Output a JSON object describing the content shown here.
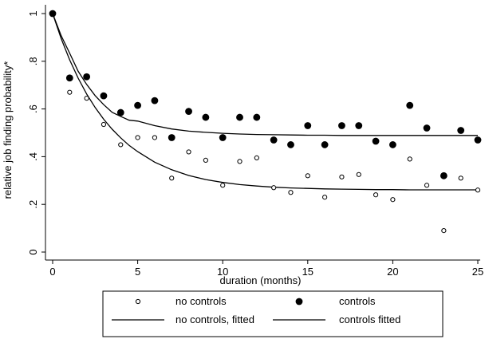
{
  "chart_data": {
    "type": "scatter",
    "xlabel": "duration (months)",
    "ylabel": "relative job finding probability*",
    "xlim": [
      0,
      25
    ],
    "ylim": [
      0,
      1
    ],
    "x_ticks": [
      "0",
      "5",
      "10",
      "15",
      "20",
      "25"
    ],
    "y_ticks": [
      "0",
      ".2",
      ".4",
      ".6",
      ".8",
      "1"
    ],
    "grid": false,
    "legend_position": "bottom",
    "series": [
      {
        "name": "no controls",
        "marker": "hollow-circle",
        "x": [
          0,
          1,
          2,
          3,
          4,
          5,
          6,
          7,
          8,
          9,
          10,
          11,
          12,
          13,
          14,
          15,
          16,
          17,
          18,
          19,
          20,
          21,
          22,
          23,
          24,
          25
        ],
        "y": [
          1.0,
          0.67,
          0.645,
          0.535,
          0.45,
          0.48,
          0.48,
          0.31,
          0.42,
          0.385,
          0.28,
          0.38,
          0.395,
          0.27,
          0.25,
          0.32,
          0.23,
          0.315,
          0.325,
          0.24,
          0.22,
          0.39,
          0.28,
          0.09,
          0.31,
          0.26
        ]
      },
      {
        "name": "controls",
        "marker": "filled-circle",
        "x": [
          0,
          1,
          2,
          3,
          4,
          5,
          6,
          7,
          8,
          9,
          10,
          11,
          12,
          13,
          14,
          15,
          16,
          17,
          18,
          19,
          20,
          21,
          22,
          23,
          24,
          25
        ],
        "y": [
          1.0,
          0.73,
          0.735,
          0.655,
          0.585,
          0.615,
          0.635,
          0.48,
          0.59,
          0.565,
          0.48,
          0.565,
          0.565,
          0.47,
          0.45,
          0.53,
          0.45,
          0.53,
          0.53,
          0.465,
          0.45,
          0.615,
          0.52,
          0.32,
          0.51,
          0.47
        ]
      },
      {
        "name": "no controls, fitted",
        "marker": "line",
        "x": [
          0,
          0.5,
          1,
          1.5,
          2,
          2.5,
          3,
          3.5,
          4,
          4.5,
          5,
          6,
          7,
          8,
          9,
          10,
          11,
          12,
          13,
          14,
          15,
          16,
          17,
          18,
          19,
          20,
          21,
          22,
          23,
          24,
          25
        ],
        "y": [
          1.0,
          0.895,
          0.806,
          0.729,
          0.663,
          0.606,
          0.557,
          0.515,
          0.479,
          0.447,
          0.421,
          0.377,
          0.345,
          0.321,
          0.304,
          0.292,
          0.283,
          0.277,
          0.272,
          0.269,
          0.267,
          0.265,
          0.264,
          0.263,
          0.262,
          0.262,
          0.261,
          0.261,
          0.261,
          0.261,
          0.261
        ]
      },
      {
        "name": "controls fitted",
        "marker": "line",
        "x": [
          0,
          0.5,
          1,
          1.5,
          2,
          2.5,
          3,
          3.5,
          4,
          4.5,
          5,
          6,
          7,
          8,
          9,
          10,
          11,
          12,
          13,
          14,
          15,
          16,
          17,
          18,
          19,
          20,
          21,
          22,
          23,
          24,
          25
        ],
        "y": [
          1.0,
          0.907,
          0.834,
          0.758,
          0.703,
          0.656,
          0.618,
          0.586,
          0.569,
          0.553,
          0.549,
          0.53,
          0.516,
          0.507,
          0.502,
          0.498,
          0.495,
          0.493,
          0.492,
          0.491,
          0.49,
          0.49,
          0.489,
          0.489,
          0.489,
          0.489,
          0.489,
          0.489,
          0.489,
          0.489,
          0.489
        ]
      }
    ],
    "legend": [
      {
        "label": "no controls",
        "symbol": "hollow-circle"
      },
      {
        "label": "controls",
        "symbol": "filled-circle"
      },
      {
        "label": "no controls, fitted",
        "symbol": "line"
      },
      {
        "label": "controls fitted",
        "symbol": "line"
      }
    ]
  }
}
